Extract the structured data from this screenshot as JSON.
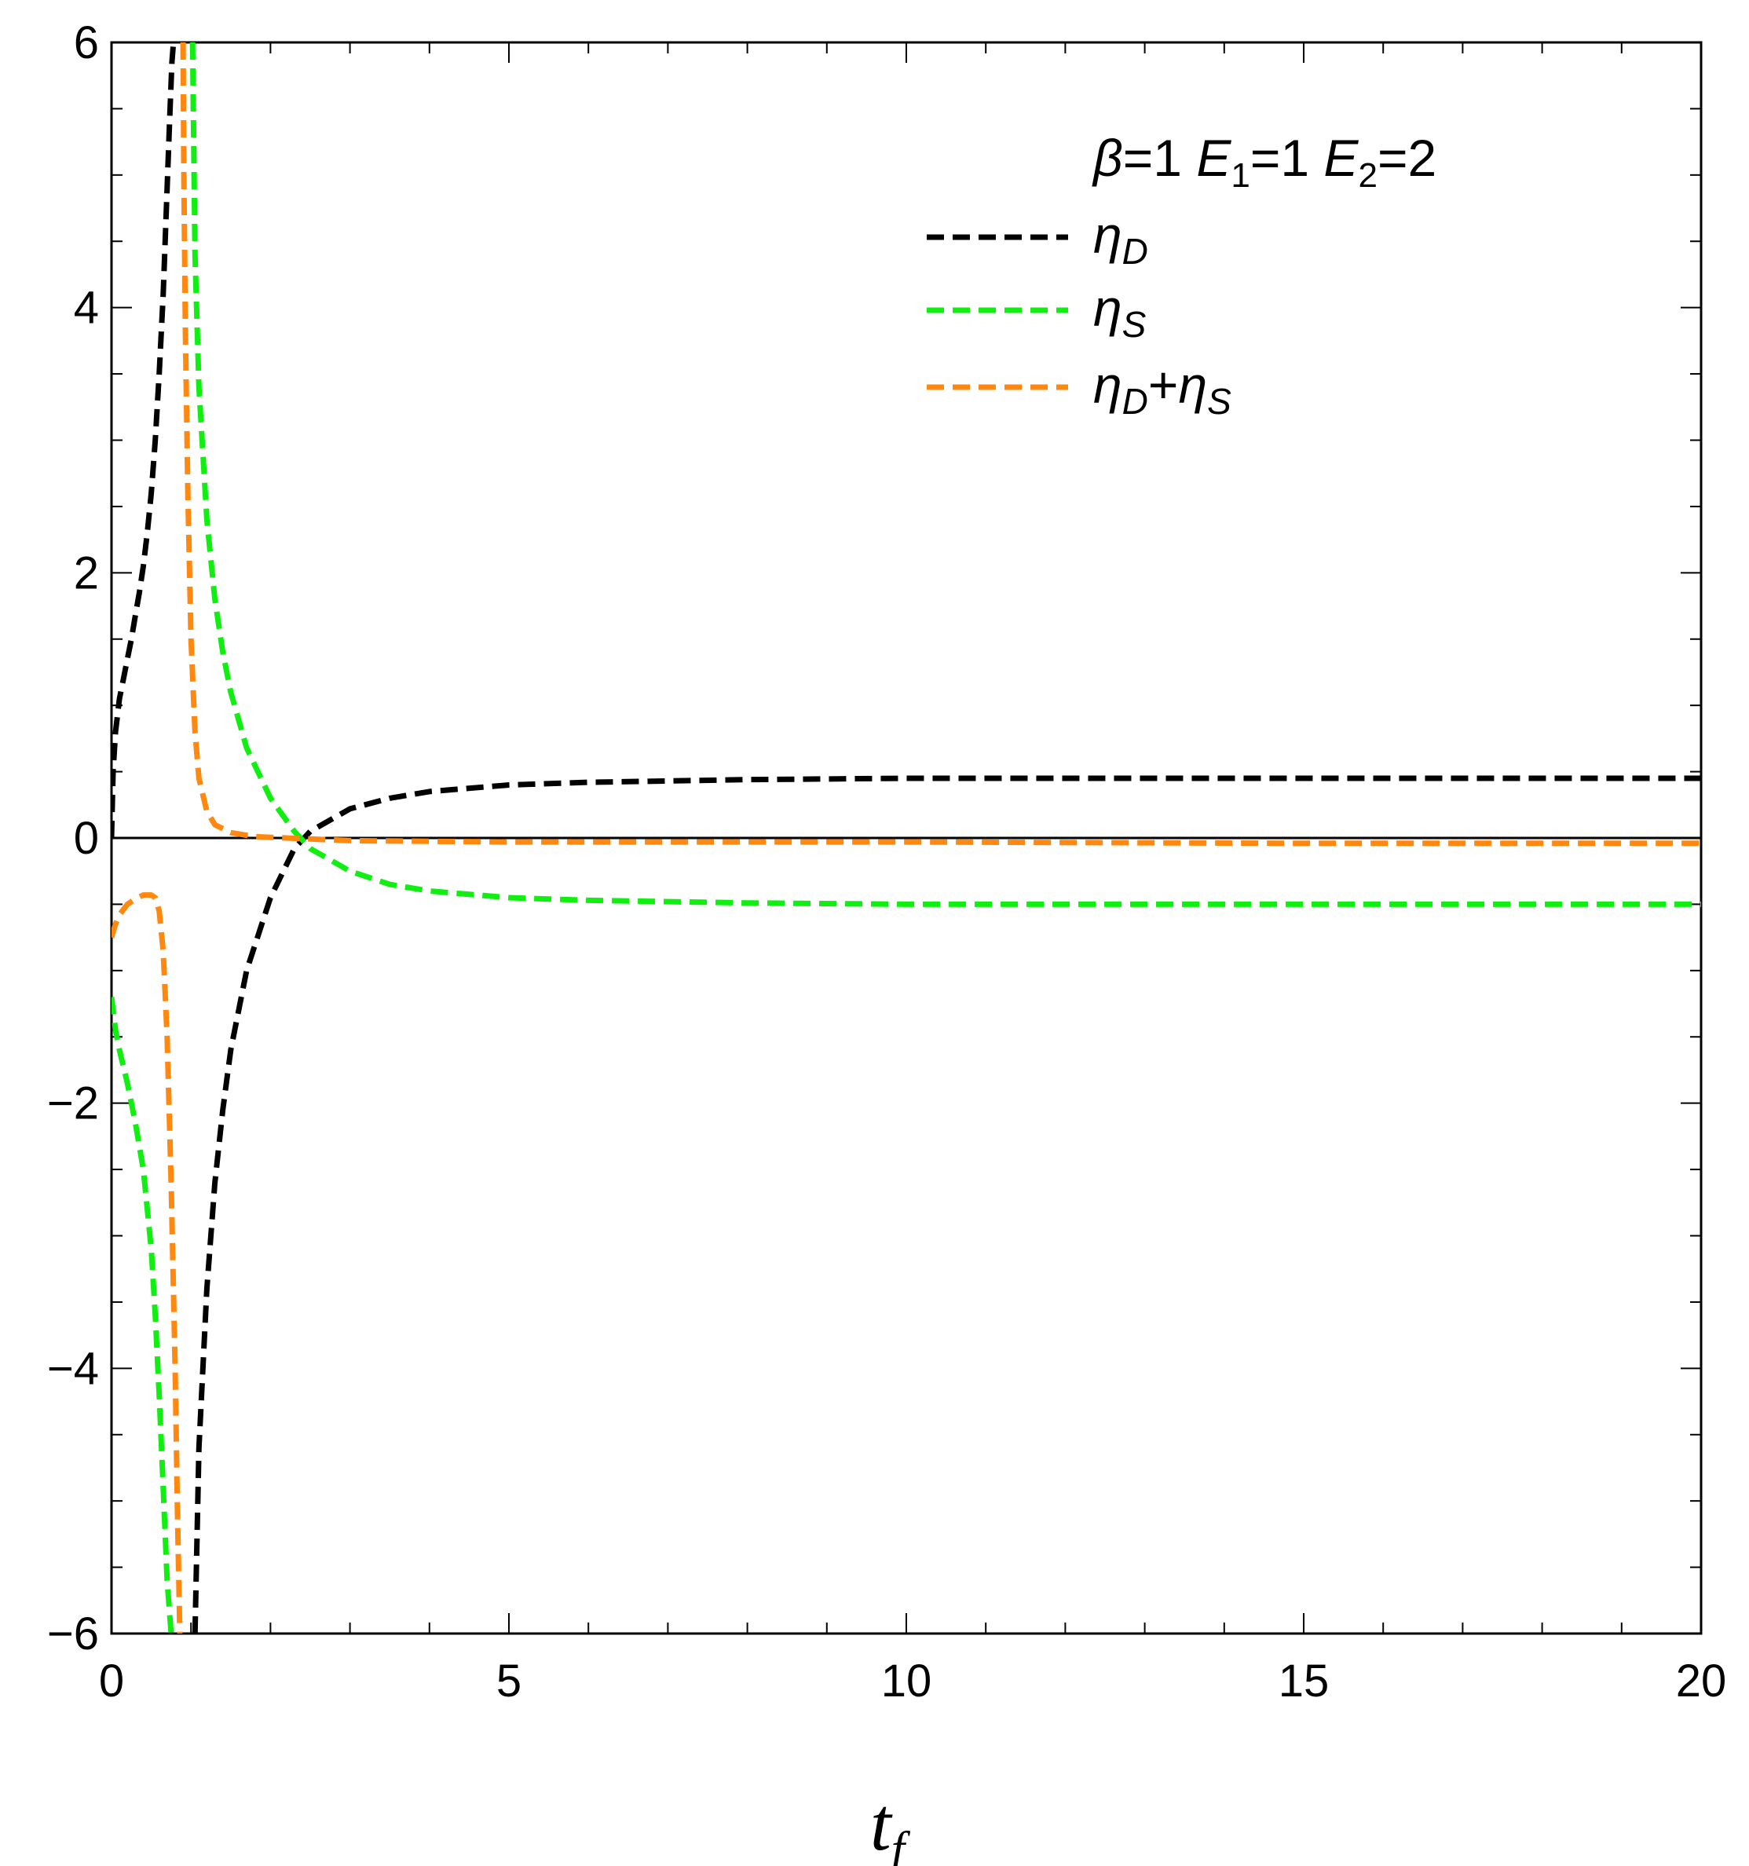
{
  "chart_data": {
    "type": "line",
    "xlabel": "t_f",
    "xlim": [
      0,
      20
    ],
    "ylim": [
      -6,
      6
    ],
    "x_ticks": [
      0,
      5,
      10,
      15,
      20
    ],
    "y_ticks": [
      6,
      4,
      2,
      0,
      -2,
      -4,
      -6
    ],
    "y_tick_labels": [
      "6",
      "4",
      "2",
      "0",
      "−2",
      "−4",
      "−6"
    ],
    "x_minor_step": 1,
    "y_minor_step": 0.5,
    "grid": false,
    "legend_placement": "top-right",
    "annotation": "β=1  E1=1 E2=2",
    "series": [
      {
        "name": "ηD",
        "color": "#000000",
        "dash": "dashed",
        "branches": [
          {
            "x": [
              0,
              0.02,
              0.05,
              0.1,
              0.15,
              0.2,
              0.25,
              0.3,
              0.35,
              0.4,
              0.45,
              0.5,
              0.55,
              0.6,
              0.65,
              0.7,
              0.73,
              0.76,
              0.78
            ],
            "y": [
              0,
              0.5,
              0.8,
              1.05,
              1.2,
              1.35,
              1.5,
              1.68,
              1.85,
              2.05,
              2.3,
              2.6,
              3.0,
              3.5,
              4.1,
              4.9,
              5.4,
              5.85,
              6.0
            ]
          },
          {
            "x": [
              1.05,
              1.1,
              1.2,
              1.3,
              1.4,
              1.5,
              1.7,
              2.0,
              2.3,
              2.5,
              3.0,
              3.5,
              4.0,
              5.0,
              6.0,
              8.0,
              10.0,
              15.0,
              20.0
            ],
            "y": [
              -6.0,
              -4.6,
              -3.4,
              -2.6,
              -2.05,
              -1.6,
              -1.0,
              -0.45,
              -0.08,
              0.05,
              0.22,
              0.3,
              0.35,
              0.4,
              0.42,
              0.44,
              0.45,
              0.45,
              0.45
            ]
          }
        ]
      },
      {
        "name": "ηS",
        "color": "#11ee11",
        "dash": "dashed",
        "branches": [
          {
            "x": [
              0,
              0.05,
              0.1,
              0.2,
              0.3,
              0.4,
              0.5,
              0.55,
              0.6,
              0.65,
              0.7,
              0.75
            ],
            "y": [
              -1.2,
              -1.45,
              -1.6,
              -1.85,
              -2.15,
              -2.5,
              -3.1,
              -3.6,
              -4.2,
              -4.9,
              -5.6,
              -6.0
            ]
          },
          {
            "x": [
              1.02,
              1.05,
              1.1,
              1.2,
              1.3,
              1.4,
              1.5,
              1.7,
              2.0,
              2.3,
              2.5,
              3.0,
              3.5,
              4.0,
              5.0,
              6.0,
              8.0,
              10.0,
              15.0,
              20.0
            ],
            "y": [
              6.0,
              4.4,
              3.4,
              2.4,
              1.8,
              1.4,
              1.1,
              0.68,
              0.3,
              0.05,
              -0.08,
              -0.25,
              -0.35,
              -0.4,
              -0.45,
              -0.47,
              -0.49,
              -0.5,
              -0.5,
              -0.5
            ]
          }
        ]
      },
      {
        "name": "ηD+ηS",
        "color": "#ff8811",
        "dash": "dashed",
        "branches": [
          {
            "x": [
              0,
              0.05,
              0.1,
              0.2,
              0.3,
              0.4,
              0.5,
              0.55,
              0.6,
              0.65,
              0.7,
              0.75,
              0.8,
              0.83,
              0.86
            ],
            "y": [
              -0.75,
              -0.65,
              -0.58,
              -0.5,
              -0.46,
              -0.43,
              -0.43,
              -0.45,
              -0.55,
              -0.85,
              -1.5,
              -2.6,
              -4.0,
              -5.1,
              -6.0
            ]
          },
          {
            "x": [
              0.9,
              0.91,
              0.93,
              0.96,
              1.0,
              1.05,
              1.1,
              1.2,
              1.3,
              1.5,
              1.8,
              2.2,
              3.0,
              5.0,
              10.0,
              15.0,
              20.0
            ],
            "y": [
              6.0,
              5.0,
              3.8,
              2.6,
              1.5,
              0.8,
              0.45,
              0.2,
              0.1,
              0.04,
              0.01,
              0.0,
              -0.02,
              -0.03,
              -0.03,
              -0.04,
              -0.04
            ]
          }
        ]
      }
    ]
  }
}
